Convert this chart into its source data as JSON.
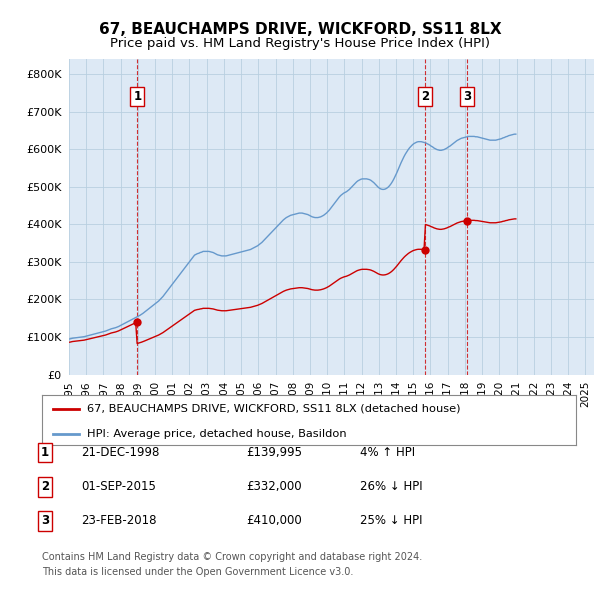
{
  "title": "67, BEAUCHAMPS DRIVE, WICKFORD, SS11 8LX",
  "subtitle": "Price paid vs. HM Land Registry's House Price Index (HPI)",
  "title_fontsize": 11,
  "subtitle_fontsize": 9.5,
  "ytick_values": [
    0,
    100000,
    200000,
    300000,
    400000,
    500000,
    600000,
    700000,
    800000
  ],
  "ylim": [
    0,
    840000
  ],
  "xlim_start": 1995.0,
  "xlim_end": 2025.5,
  "background_color": "#ffffff",
  "plot_background": "#dde9f5",
  "grid_color": "#b8cfe0",
  "hpi_color": "#6699cc",
  "price_color": "#cc0000",
  "sale_marker_color": "#cc0000",
  "annotation_line_color": "#cc0000",
  "legend_label_price": "67, BEAUCHAMPS DRIVE, WICKFORD, SS11 8LX (detached house)",
  "legend_label_hpi": "HPI: Average price, detached house, Basildon",
  "transactions": [
    {
      "num": 1,
      "date": "21-DEC-1998",
      "year": 1998.97,
      "price": 139995,
      "hpi_pct": "4% ↑ HPI"
    },
    {
      "num": 2,
      "date": "01-SEP-2015",
      "year": 2015.67,
      "price": 332000,
      "hpi_pct": "26% ↓ HPI"
    },
    {
      "num": 3,
      "date": "23-FEB-2018",
      "year": 2018.14,
      "price": 410000,
      "hpi_pct": "25% ↓ HPI"
    }
  ],
  "footer_lines": [
    "Contains HM Land Registry data © Crown copyright and database right 2024.",
    "This data is licensed under the Open Government Licence v3.0."
  ],
  "hpi_monthly": {
    "comment": "Monthly HPI average price for detached house Basildon, 1995-01 to 2024-12",
    "start_year": 1995,
    "start_month": 1,
    "values": [
      95000,
      96000,
      97000,
      97500,
      98000,
      98500,
      99000,
      99500,
      100000,
      100500,
      101000,
      102000,
      103000,
      104000,
      105000,
      106000,
      107000,
      108000,
      109000,
      110000,
      111000,
      112000,
      113000,
      114000,
      115000,
      116000,
      117500,
      119000,
      120500,
      122000,
      123000,
      124000,
      125000,
      126500,
      128000,
      130000,
      132000,
      134000,
      136000,
      138000,
      140000,
      142000,
      144000,
      146000,
      148000,
      150000,
      152000,
      154000,
      156000,
      158000,
      160500,
      163000,
      166000,
      169000,
      172000,
      175000,
      178000,
      181000,
      184000,
      187000,
      190000,
      193000,
      196000,
      200000,
      204000,
      208000,
      213000,
      218000,
      223000,
      228000,
      233000,
      238000,
      243000,
      248000,
      253000,
      258000,
      263000,
      268000,
      273000,
      278000,
      283000,
      288000,
      293000,
      298000,
      303000,
      308000,
      313000,
      318000,
      320000,
      322000,
      323000,
      325000,
      326000,
      328000,
      328000,
      328000,
      328000,
      328000,
      327000,
      326000,
      325000,
      323000,
      321000,
      319000,
      318000,
      317000,
      316000,
      316000,
      316000,
      316000,
      317000,
      318000,
      319000,
      320000,
      321000,
      322000,
      323000,
      324000,
      325000,
      326000,
      327000,
      328000,
      329000,
      330000,
      331000,
      332000,
      333000,
      335000,
      337000,
      339000,
      341000,
      343000,
      346000,
      349000,
      352000,
      356000,
      360000,
      364000,
      368000,
      372000,
      376000,
      380000,
      384000,
      388000,
      392000,
      396000,
      400000,
      404000,
      408000,
      412000,
      415000,
      418000,
      420000,
      422000,
      424000,
      425000,
      426000,
      427000,
      428000,
      429000,
      430000,
      430000,
      430000,
      429000,
      428000,
      427000,
      426000,
      424000,
      422000,
      420000,
      419000,
      418000,
      418000,
      418000,
      419000,
      420000,
      422000,
      424000,
      427000,
      430000,
      434000,
      438000,
      443000,
      448000,
      453000,
      458000,
      463000,
      468000,
      473000,
      477000,
      480000,
      483000,
      485000,
      487000,
      490000,
      493000,
      497000,
      501000,
      505000,
      509000,
      513000,
      516000,
      518000,
      520000,
      521000,
      521000,
      521000,
      521000,
      520000,
      519000,
      517000,
      514000,
      511000,
      507000,
      503000,
      499000,
      496000,
      494000,
      493000,
      493000,
      494000,
      496000,
      499000,
      503000,
      508000,
      514000,
      521000,
      529000,
      537000,
      546000,
      555000,
      564000,
      572000,
      580000,
      587000,
      593000,
      599000,
      604000,
      608000,
      612000,
      615000,
      617000,
      619000,
      620000,
      620000,
      620000,
      619000,
      618000,
      617000,
      615000,
      613000,
      611000,
      608000,
      606000,
      603000,
      601000,
      599000,
      598000,
      597000,
      597000,
      598000,
      599000,
      601000,
      603000,
      606000,
      608000,
      611000,
      614000,
      617000,
      620000,
      623000,
      625000,
      627000,
      629000,
      630000,
      631000,
      632000,
      633000,
      634000,
      634000,
      634000,
      634000,
      634000,
      633000,
      633000,
      632000,
      631000,
      630000,
      629000,
      628000,
      627000,
      626000,
      625000,
      624000,
      624000,
      624000,
      624000,
      624000,
      625000,
      626000,
      627000,
      628000,
      630000,
      631000,
      633000,
      634000,
      636000,
      637000,
      638000,
      639000,
      640000,
      640000
    ]
  },
  "xtick_years": [
    1995,
    1996,
    1997,
    1998,
    1999,
    2000,
    2001,
    2002,
    2003,
    2004,
    2005,
    2006,
    2007,
    2008,
    2009,
    2010,
    2011,
    2012,
    2013,
    2014,
    2015,
    2016,
    2017,
    2018,
    2019,
    2020,
    2021,
    2022,
    2023,
    2024,
    2025
  ]
}
